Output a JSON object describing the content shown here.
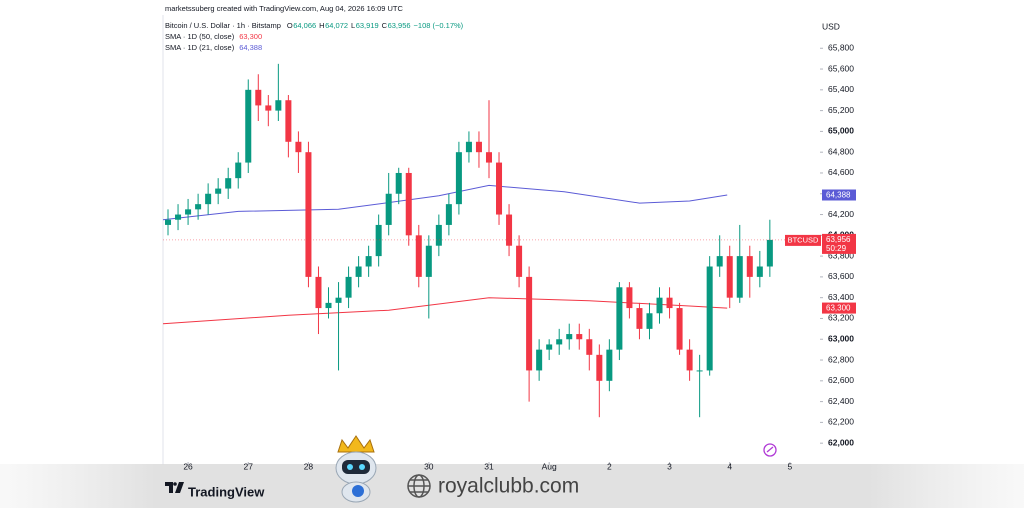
{
  "chart_data": {
    "type": "candlestick",
    "attribution": "marketssuberg created with TradingView.com, Aug 04, 2026 16:09 UTC",
    "title": "Bitcoin / U.S. Dollar · 1h · Bitstamp",
    "ohlc": [
      {
        "label": "O",
        "value": "64,066"
      },
      {
        "label": "H",
        "value": "64,072"
      },
      {
        "label": "L",
        "value": "63,919"
      },
      {
        "label": "C",
        "value": "63,956"
      }
    ],
    "change": "−108 (−0.17%)",
    "currency": "USD",
    "brand": "TradingView",
    "watermark": "royalclubb.com",
    "xlim": [
      -10,
      252
    ],
    "xticks": [
      {
        "value": 0,
        "label": "26"
      },
      {
        "value": 24,
        "label": "27"
      },
      {
        "value": 48,
        "label": "28"
      },
      {
        "value": 96,
        "label": "30"
      },
      {
        "value": 120,
        "label": "31"
      },
      {
        "value": 144,
        "label": "Aug"
      },
      {
        "value": 168,
        "label": "2"
      },
      {
        "value": 192,
        "label": "3"
      },
      {
        "value": 216,
        "label": "4"
      },
      {
        "value": 240,
        "label": "5"
      }
    ],
    "ylim": [
      61790,
      66120
    ],
    "yticks": [
      {
        "value": 62000,
        "label": "62,000"
      },
      {
        "value": 62200,
        "label": "62,200"
      },
      {
        "value": 62400,
        "label": "62,400"
      },
      {
        "value": 62600,
        "label": "62,600"
      },
      {
        "value": 62800,
        "label": "62,800"
      },
      {
        "value": 63000,
        "label": "63,000"
      },
      {
        "value": 63200,
        "label": "63,200"
      },
      {
        "value": 63400,
        "label": "63,400"
      },
      {
        "value": 63600,
        "label": "63,600"
      },
      {
        "value": 63800,
        "label": "63,800"
      },
      {
        "value": 64000,
        "label": "64,000"
      },
      {
        "value": 64200,
        "label": "64,200"
      },
      {
        "value": 64400,
        "label": "64,400"
      },
      {
        "value": 64600,
        "label": "64,600"
      },
      {
        "value": 64800,
        "label": "64,800"
      },
      {
        "value": 65000,
        "label": "65,000"
      },
      {
        "value": 65200,
        "label": "65,200"
      },
      {
        "value": 65400,
        "label": "65,400"
      },
      {
        "value": 65600,
        "label": "65,600"
      },
      {
        "value": 65800,
        "label": "65,800"
      }
    ],
    "series": [
      {
        "name": "BTCUSD",
        "up_color": "#089981",
        "down_color": "#f23645",
        "last_label": "63,956",
        "countdown": "50:29",
        "x": [
          -8,
          -4,
          0,
          4,
          8,
          12,
          16,
          20,
          24,
          28,
          32,
          36,
          40,
          44,
          48,
          52,
          56,
          60,
          64,
          68,
          72,
          76,
          80,
          84,
          88,
          92,
          96,
          100,
          104,
          108,
          112,
          116,
          120,
          124,
          128,
          132,
          136,
          140,
          144,
          148,
          152,
          156,
          160,
          164,
          168,
          172,
          176,
          180,
          184,
          188,
          192,
          196,
          200,
          204,
          208,
          212,
          216,
          220,
          224,
          228,
          232
        ],
        "open": [
          64100,
          64150,
          64200,
          64250,
          64300,
          64400,
          64450,
          64550,
          64700,
          65400,
          65250,
          65200,
          65300,
          64900,
          64800,
          63600,
          63300,
          63350,
          63400,
          63600,
          63700,
          63800,
          64100,
          64400,
          64600,
          64000,
          63600,
          63900,
          64100,
          64300,
          64800,
          64900,
          64800,
          64700,
          64200,
          63900,
          63600,
          62700,
          62900,
          62950,
          63000,
          63050,
          63000,
          62850,
          62600,
          62900,
          63500,
          63300,
          63100,
          63250,
          63400,
          63300,
          62900,
          62700,
          62700,
          63700,
          63800,
          63400,
          63800,
          63600,
          63700
        ],
        "high": [
          64250,
          64300,
          64350,
          64400,
          64500,
          64550,
          64650,
          64800,
          65500,
          65550,
          65350,
          65650,
          65350,
          65000,
          64900,
          63700,
          63500,
          63550,
          63700,
          63800,
          63900,
          64200,
          64600,
          64650,
          64650,
          64100,
          64000,
          64200,
          64400,
          64900,
          65000,
          65000,
          65300,
          64800,
          64300,
          64000,
          63700,
          63000,
          63000,
          63100,
          63150,
          63150,
          63100,
          62950,
          63000,
          63550,
          63550,
          63350,
          63350,
          63500,
          63500,
          63350,
          63000,
          62850,
          63800,
          64000,
          63900,
          64100,
          63900,
          63850,
          64150
        ],
        "low": [
          64000,
          64050,
          64100,
          64150,
          64200,
          64300,
          64350,
          64450,
          64600,
          65100,
          65050,
          65100,
          64750,
          64600,
          63500,
          63050,
          63200,
          62700,
          63300,
          63500,
          63600,
          63700,
          64000,
          64300,
          63900,
          63500,
          63200,
          63800,
          64000,
          64200,
          64700,
          64650,
          64550,
          64100,
          63800,
          63500,
          62400,
          62600,
          62800,
          62850,
          62900,
          62900,
          62700,
          62250,
          62500,
          62800,
          63200,
          63000,
          63000,
          63150,
          63200,
          62850,
          62600,
          62250,
          62650,
          63600,
          63300,
          63350,
          63400,
          63500,
          63600
        ],
        "close": [
          64150,
          64200,
          64250,
          64300,
          64400,
          64450,
          64550,
          64700,
          65400,
          65250,
          65200,
          65300,
          64900,
          64800,
          63600,
          63300,
          63350,
          63400,
          63600,
          63700,
          63800,
          64100,
          64400,
          64600,
          64000,
          63600,
          63900,
          64100,
          64300,
          64800,
          64900,
          64800,
          64700,
          64200,
          63900,
          63600,
          62700,
          62900,
          62950,
          63000,
          63050,
          63000,
          62850,
          62600,
          62900,
          63500,
          63300,
          63100,
          63250,
          63400,
          63300,
          62900,
          62700,
          62700,
          63700,
          63800,
          63400,
          63800,
          63600,
          63700,
          63956
        ]
      }
    ],
    "overlays": [
      {
        "name": "SMA · 1D (50, close)",
        "color": "#f23645",
        "value_label": "63,300",
        "x": [
          -10,
          40,
          80,
          120,
          160,
          200,
          215
        ],
        "values": [
          63150,
          63230,
          63280,
          63400,
          63370,
          63320,
          63300
        ]
      },
      {
        "name": "SMA · 1D (21, close)",
        "color": "#5b5bd6",
        "value_label": "64,388",
        "x": [
          -10,
          20,
          60,
          100,
          120,
          150,
          180,
          200,
          215
        ],
        "values": [
          64150,
          64230,
          64250,
          64380,
          64480,
          64420,
          64310,
          64330,
          64388
        ]
      }
    ]
  }
}
